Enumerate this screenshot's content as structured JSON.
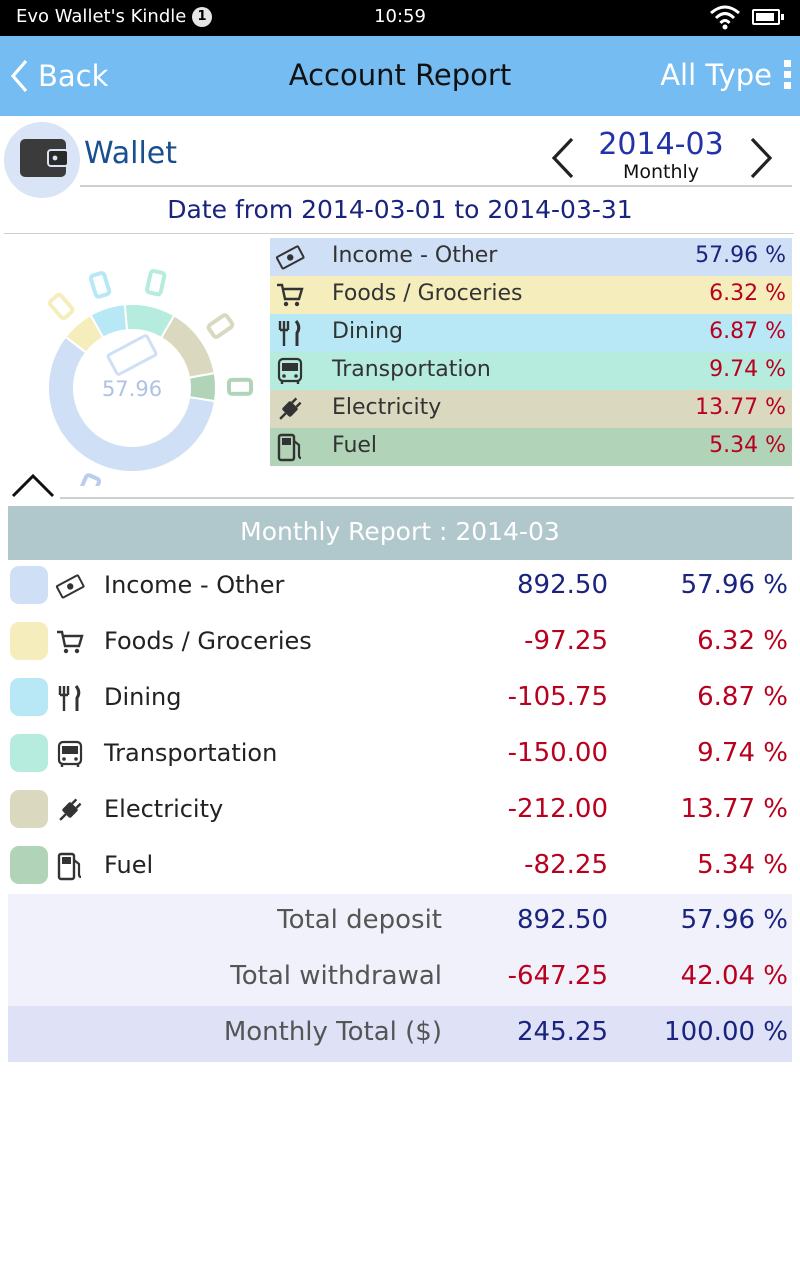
{
  "status_bar": {
    "device_name": "Evo Wallet's Kindle",
    "notification_count": "1",
    "time": "10:59"
  },
  "app_bar": {
    "back_label": "Back",
    "title": "Account Report",
    "type_filter": "All Type"
  },
  "account": {
    "name": "Wallet",
    "icon": "wallet-icon"
  },
  "period": {
    "label": "2014-03",
    "mode": "Monthly"
  },
  "date_range": "Date from 2014-03-01 to 2014-03-31",
  "chart_data": {
    "type": "pie",
    "center_label": "57.96",
    "slices": [
      {
        "name": "Income - Other",
        "value": 57.96,
        "color": "#cfdff5",
        "icon": "cash-icon"
      },
      {
        "name": "Foods / Groceries",
        "value": 6.32,
        "color": "#f5eebc",
        "icon": "cart-icon"
      },
      {
        "name": "Dining",
        "value": 6.87,
        "color": "#b8e8f6",
        "icon": "fork-knife-icon"
      },
      {
        "name": "Transportation",
        "value": 9.74,
        "color": "#b6ecdd",
        "icon": "bus-icon"
      },
      {
        "name": "Electricity",
        "value": 13.77,
        "color": "#dad9c0",
        "icon": "plug-icon"
      },
      {
        "name": "Fuel",
        "value": 5.34,
        "color": "#b1d4b8",
        "icon": "fuel-icon"
      }
    ]
  },
  "legend": [
    {
      "label": "Income - Other",
      "pct": "57.96 %",
      "bg": "#cfdff5",
      "sign": "pos"
    },
    {
      "label": "Foods / Groceries",
      "pct": "6.32 %",
      "bg": "#f5eebc",
      "sign": "neg"
    },
    {
      "label": "Dining",
      "pct": "6.87 %",
      "bg": "#b8e8f6",
      "sign": "neg"
    },
    {
      "label": "Transportation",
      "pct": "9.74 %",
      "bg": "#b6ecdd",
      "sign": "neg"
    },
    {
      "label": "Electricity",
      "pct": "13.77 %",
      "bg": "#dad9c0",
      "sign": "neg"
    },
    {
      "label": "Fuel",
      "pct": "5.34 %",
      "bg": "#b1d4b8",
      "sign": "neg"
    }
  ],
  "report": {
    "header": "Monthly Report : 2014-03",
    "rows": [
      {
        "label": "Income - Other",
        "amount": "892.50",
        "pct": "57.96 %",
        "color": "#cfdff5",
        "sign": "pos"
      },
      {
        "label": "Foods / Groceries",
        "amount": "-97.25",
        "pct": "6.32 %",
        "color": "#f5eebc",
        "sign": "neg"
      },
      {
        "label": "Dining",
        "amount": "-105.75",
        "pct": "6.87 %",
        "color": "#b8e8f6",
        "sign": "neg"
      },
      {
        "label": "Transportation",
        "amount": "-150.00",
        "pct": "9.74 %",
        "color": "#b6ecdd",
        "sign": "neg"
      },
      {
        "label": "Electricity",
        "amount": "-212.00",
        "pct": "13.77 %",
        "color": "#dad9c0",
        "sign": "neg"
      },
      {
        "label": "Fuel",
        "amount": "-82.25",
        "pct": "5.34 %",
        "color": "#b1d4b8",
        "sign": "neg"
      }
    ],
    "totals": [
      {
        "label": "Total deposit",
        "amount": "892.50",
        "pct": "57.96 %",
        "sign": "pos",
        "bg": "#f1f1fb"
      },
      {
        "label": "Total withdrawal",
        "amount": "-647.25",
        "pct": "42.04 %",
        "sign": "neg",
        "bg": "#f1f1fb"
      },
      {
        "label": "Monthly Total ($)",
        "amount": "245.25",
        "pct": "100.00 %",
        "sign": "pos",
        "bg": "#dfe1f7"
      }
    ]
  }
}
